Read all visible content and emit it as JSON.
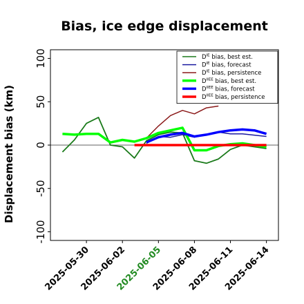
{
  "chart_data": {
    "type": "line",
    "title": "Bias, ice edge displacement",
    "xlabel": "",
    "ylabel": "Displacement bias (km)",
    "ylim": [
      -110,
      110
    ],
    "xlim": [
      "2025-05-27",
      "2025-06-15"
    ],
    "yticks": [
      100,
      50,
      0,
      -50,
      -100
    ],
    "xticks": [
      {
        "date": "2025-05-30",
        "label": "2025-05-30",
        "color": "#000000"
      },
      {
        "date": "2025-06-02",
        "label": "2025-06-02",
        "color": "#000000"
      },
      {
        "date": "2025-06-05",
        "label": "2025-06-05",
        "color": "#228B22"
      },
      {
        "date": "2025-06-08",
        "label": "2025-06-08",
        "color": "#000000"
      },
      {
        "date": "2025-06-11",
        "label": "2025-06-11",
        "color": "#000000"
      },
      {
        "date": "2025-06-14",
        "label": "2025-06-14",
        "color": "#000000"
      }
    ],
    "zero_line": {
      "y": 0,
      "color": "#808080"
    },
    "legend_placement": "top-right",
    "series": [
      {
        "name_prefix": "D",
        "name_sup": "IE",
        "name_suffix": " bias, best est.",
        "color": "#1a7a1a",
        "width": 1.8,
        "points": [
          [
            "2025-05-28",
            -8
          ],
          [
            "2025-05-29",
            6
          ],
          [
            "2025-05-30",
            25
          ],
          [
            "2025-05-31",
            32
          ],
          [
            "2025-06-01",
            0
          ],
          [
            "2025-06-02",
            -2
          ],
          [
            "2025-06-03",
            -15
          ],
          [
            "2025-06-04",
            5
          ],
          [
            "2025-06-05",
            12
          ],
          [
            "2025-06-06",
            15
          ],
          [
            "2025-06-07",
            14
          ],
          [
            "2025-06-08",
            -18
          ],
          [
            "2025-06-09",
            -21
          ],
          [
            "2025-06-10",
            -16
          ],
          [
            "2025-06-11",
            -5
          ],
          [
            "2025-06-12",
            0
          ],
          [
            "2025-06-14",
            -4
          ]
        ]
      },
      {
        "name_prefix": "D",
        "name_sup": "IE",
        "name_suffix": " bias, forecast",
        "color": "#1a1aa0",
        "width": 1.5,
        "points": [
          [
            "2025-06-04",
            2
          ],
          [
            "2025-06-05",
            10
          ],
          [
            "2025-06-06",
            9
          ],
          [
            "2025-06-07",
            12
          ],
          [
            "2025-06-08",
            9
          ],
          [
            "2025-06-09",
            12
          ],
          [
            "2025-06-10",
            15
          ],
          [
            "2025-06-11",
            13
          ],
          [
            "2025-06-12",
            13
          ],
          [
            "2025-06-14",
            10
          ]
        ]
      },
      {
        "name_prefix": "D",
        "name_sup": "IE",
        "name_suffix": " bias, persistence",
        "color": "#8b1a1a",
        "width": 1.5,
        "points": [
          [
            "2025-06-04",
            8
          ],
          [
            "2025-06-05",
            22
          ],
          [
            "2025-06-06",
            34
          ],
          [
            "2025-06-07",
            40
          ],
          [
            "2025-06-08",
            36
          ],
          [
            "2025-06-09",
            43
          ],
          [
            "2025-06-10",
            45
          ]
        ]
      },
      {
        "name_prefix": "D",
        "name_sup": "IIEE",
        "name_suffix": " bias, best est.",
        "color": "#00ff00",
        "width": 3.5,
        "points": [
          [
            "2025-05-28",
            13
          ],
          [
            "2025-05-29",
            12
          ],
          [
            "2025-05-30",
            13
          ],
          [
            "2025-05-31",
            13
          ],
          [
            "2025-06-01",
            3
          ],
          [
            "2025-06-02",
            6
          ],
          [
            "2025-06-03",
            4
          ],
          [
            "2025-06-04",
            8
          ],
          [
            "2025-06-05",
            14
          ],
          [
            "2025-06-06",
            17
          ],
          [
            "2025-06-07",
            20
          ],
          [
            "2025-06-08",
            -6
          ],
          [
            "2025-06-09",
            -6
          ],
          [
            "2025-06-10",
            -1
          ],
          [
            "2025-06-11",
            1
          ],
          [
            "2025-06-12",
            2
          ],
          [
            "2025-06-13",
            0
          ],
          [
            "2025-06-14",
            -2
          ]
        ]
      },
      {
        "name_prefix": "D",
        "name_sup": "IIEE",
        "name_suffix": " bias, forecast",
        "color": "#0000ff",
        "width": 3.5,
        "points": [
          [
            "2025-06-04",
            3
          ],
          [
            "2025-06-05",
            9
          ],
          [
            "2025-06-06",
            12
          ],
          [
            "2025-06-07",
            14
          ],
          [
            "2025-06-08",
            10
          ],
          [
            "2025-06-09",
            12
          ],
          [
            "2025-06-10",
            15
          ],
          [
            "2025-06-11",
            17
          ],
          [
            "2025-06-12",
            18
          ],
          [
            "2025-06-13",
            17
          ],
          [
            "2025-06-14",
            13
          ]
        ]
      },
      {
        "name_prefix": "D",
        "name_sup": "IIEE",
        "name_suffix": " bias, persistence",
        "color": "#ff0000",
        "width": 3.5,
        "points": [
          [
            "2025-06-03",
            0
          ],
          [
            "2025-06-08",
            0
          ],
          [
            "2025-06-12",
            0
          ],
          [
            "2025-06-13",
            0
          ],
          [
            "2025-06-14",
            0
          ]
        ]
      }
    ]
  }
}
